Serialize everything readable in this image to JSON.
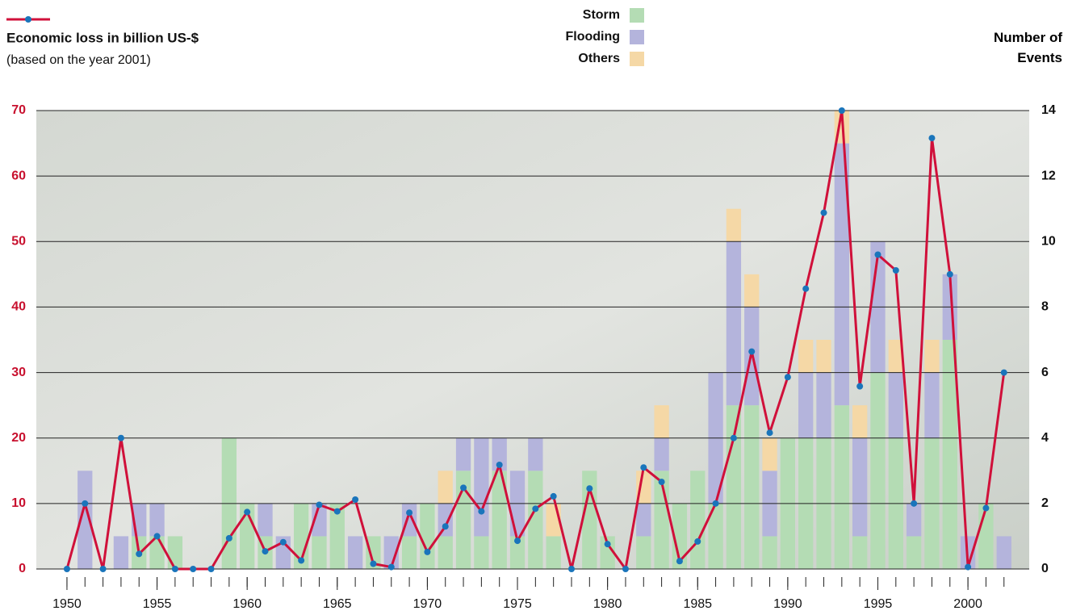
{
  "chart_data": {
    "type": "combo",
    "y2label": "Number of Events",
    "x": [
      1950,
      1951,
      1952,
      1953,
      1954,
      1955,
      1956,
      1957,
      1958,
      1959,
      1960,
      1961,
      1962,
      1963,
      1964,
      1965,
      1966,
      1967,
      1968,
      1969,
      1970,
      1971,
      1972,
      1973,
      1974,
      1975,
      1976,
      1977,
      1978,
      1979,
      1980,
      1981,
      1982,
      1983,
      1984,
      1985,
      1986,
      1987,
      1988,
      1989,
      1990,
      1991,
      1992,
      1993,
      1994,
      1995,
      1996,
      1997,
      1998,
      1999,
      2000,
      2001,
      2002
    ],
    "xlim": [
      1948.3,
      2003.4
    ],
    "xticks": [
      1950,
      1955,
      1960,
      1965,
      1970,
      1975,
      1980,
      1985,
      1990,
      1995,
      2000
    ],
    "ylim": [
      0,
      70
    ],
    "yticks": [
      0,
      10,
      20,
      30,
      40,
      50,
      60,
      70
    ],
    "y2lim": [
      0,
      14
    ],
    "y2ticks": [
      0,
      2,
      4,
      6,
      8,
      10,
      12,
      14
    ],
    "grid": true,
    "series": [
      {
        "name": "Storm",
        "type": "bar",
        "axis": "y2",
        "color": "#b4dcb4",
        "values": [
          0,
          0,
          0,
          0,
          1,
          1,
          1,
          0,
          0,
          4,
          2,
          1,
          0,
          2,
          1,
          2,
          0,
          1,
          0,
          1,
          2,
          1,
          3,
          1,
          3,
          1,
          3,
          1,
          0,
          3,
          1,
          0,
          1,
          3,
          2,
          3,
          2,
          5,
          5,
          1,
          4,
          4,
          4,
          5,
          1,
          6,
          4,
          1,
          4,
          7,
          0,
          2,
          0
        ]
      },
      {
        "name": "Flooding",
        "type": "bar",
        "axis": "y2",
        "color": "#b4b4dc",
        "values": [
          0,
          3,
          0,
          1,
          1,
          1,
          0,
          0,
          0,
          0,
          0,
          1,
          1,
          0,
          1,
          0,
          1,
          0,
          1,
          1,
          0,
          1,
          1,
          3,
          1,
          2,
          1,
          0,
          0,
          0,
          0,
          0,
          1,
          1,
          0,
          0,
          4,
          5,
          3,
          2,
          0,
          2,
          2,
          8,
          3,
          4,
          2,
          1,
          2,
          2,
          1,
          0,
          1
        ]
      },
      {
        "name": "Others",
        "type": "bar",
        "axis": "y2",
        "color": "#f5d8a6",
        "values": [
          0,
          0,
          0,
          0,
          0,
          0,
          0,
          0,
          0,
          0,
          0,
          0,
          0,
          0,
          0,
          0,
          0,
          0,
          0,
          0,
          0,
          1,
          0,
          0,
          0,
          0,
          0,
          1,
          0,
          0,
          0,
          0,
          1,
          1,
          0,
          0,
          0,
          1,
          1,
          1,
          0,
          1,
          1,
          1,
          1,
          0,
          1,
          0,
          1,
          0,
          0,
          0,
          0
        ]
      },
      {
        "name": "Economic loss in billion US-$",
        "subtitle": "(based on the year 2001)",
        "type": "line",
        "color": "#d0103a",
        "marker_color": "#1a75bb",
        "values": [
          0,
          10,
          0,
          20,
          2.3,
          5,
          0,
          0,
          0,
          4.7,
          8.7,
          2.7,
          4.1,
          1.3,
          9.8,
          8.8,
          10.6,
          0.8,
          0.3,
          8.6,
          2.6,
          6.5,
          12.4,
          8.8,
          15.9,
          4.3,
          9.2,
          11.1,
          0,
          12.3,
          3.8,
          0,
          15.5,
          13.3,
          1.2,
          4.2,
          10,
          20,
          33.2,
          20.8,
          29.3,
          42.8,
          54.4,
          70,
          27.9,
          48,
          45.6,
          10,
          65.8,
          45,
          0.3,
          9.3,
          30
        ]
      }
    ]
  }
}
